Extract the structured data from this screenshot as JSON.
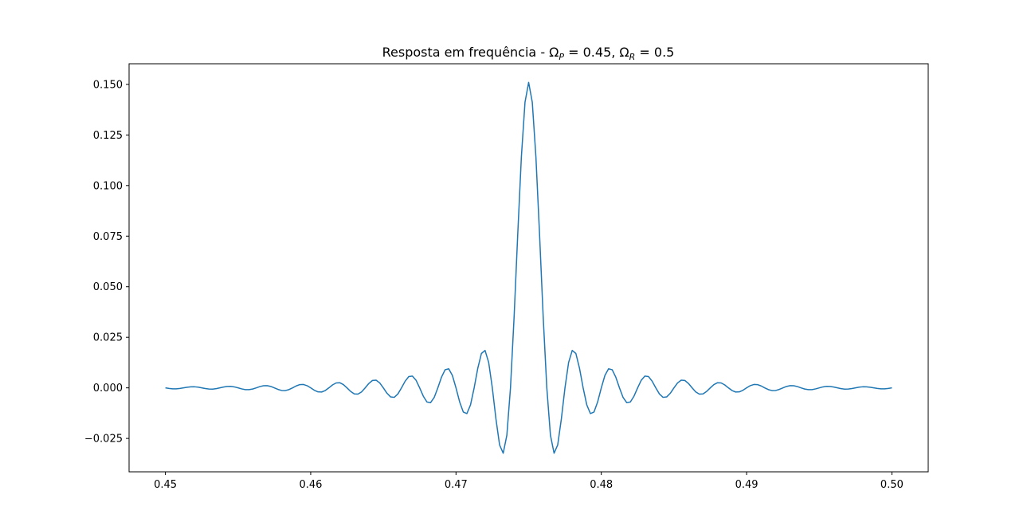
{
  "chart_data": {
    "type": "line",
    "title": [
      "Resposta em frequência - Ω",
      "P",
      " = 0.45, Ω",
      "R",
      " = 0.5"
    ],
    "xlim": [
      0.4475,
      0.5025
    ],
    "ylim": [
      -0.0415,
      0.1602
    ],
    "xticks": [
      0.45,
      0.46,
      0.47,
      0.48,
      0.49,
      {
        "value": 0.5,
        "label": "0.50"
      }
    ],
    "yticks": [
      {
        "value": -0.025,
        "label": "−0.025"
      },
      {
        "value": 0,
        "label": "0.000"
      },
      {
        "value": 0.025,
        "label": "0.025"
      },
      {
        "value": 0.05,
        "label": "0.050"
      },
      {
        "value": 0.075,
        "label": "0.075"
      },
      {
        "value": 0.1,
        "label": "0.100"
      },
      {
        "value": 0.125,
        "label": "0.125"
      },
      {
        "value": 0.15,
        "label": "0.150"
      }
    ],
    "grid": false,
    "series": [
      {
        "color": "#1f77b4",
        "x": [
          0.45,
          0.45025,
          0.4505,
          0.45075,
          0.451,
          0.45125,
          0.4515,
          0.45175,
          0.452,
          0.45225,
          0.4525,
          0.45275,
          0.453,
          0.45325,
          0.4535,
          0.45375,
          0.454,
          0.45425,
          0.4545,
          0.45475,
          0.455,
          0.45525,
          0.4555,
          0.45575,
          0.456,
          0.45625,
          0.4565,
          0.45675,
          0.457,
          0.45725,
          0.4575,
          0.45775,
          0.458,
          0.45825,
          0.4585,
          0.45875,
          0.459,
          0.45925,
          0.4595,
          0.45975,
          0.46,
          0.46025,
          0.4605,
          0.46075,
          0.461,
          0.46125,
          0.4615,
          0.46175,
          0.462,
          0.46225,
          0.4625,
          0.46275,
          0.463,
          0.46325,
          0.4635,
          0.46375,
          0.464,
          0.46425,
          0.4645,
          0.46475,
          0.465,
          0.46525,
          0.4655,
          0.46575,
          0.466,
          0.46625,
          0.4665,
          0.46675,
          0.467,
          0.46725,
          0.4675,
          0.46775,
          0.468,
          0.46825,
          0.4685,
          0.46875,
          0.469,
          0.46925,
          0.4695,
          0.46975,
          0.47,
          0.47025,
          0.4705,
          0.47075,
          0.471,
          0.47125,
          0.4715,
          0.47175,
          0.472,
          0.47225,
          0.4725,
          0.47275,
          0.473,
          0.47325,
          0.4735,
          0.47375,
          0.474,
          0.47425,
          0.4745,
          0.47475,
          0.475,
          0.47525,
          0.4755,
          0.47575,
          0.476,
          0.47625,
          0.4765,
          0.47675,
          0.477,
          0.47725,
          0.4775,
          0.47775,
          0.478,
          0.47825,
          0.4785,
          0.47875,
          0.479,
          0.47925,
          0.4795,
          0.47975,
          0.48,
          0.48025,
          0.4805,
          0.48075,
          0.481,
          0.48125,
          0.4815,
          0.48175,
          0.482,
          0.48225,
          0.4825,
          0.48275,
          0.483,
          0.48325,
          0.4835,
          0.48375,
          0.484,
          0.48425,
          0.4845,
          0.48475,
          0.485,
          0.48525,
          0.4855,
          0.48575,
          0.486,
          0.48625,
          0.4865,
          0.48675,
          0.487,
          0.48725,
          0.4875,
          0.48775,
          0.488,
          0.48825,
          0.4885,
          0.48875,
          0.489,
          0.48925,
          0.4895,
          0.48975,
          0.49,
          0.49025,
          0.4905,
          0.49075,
          0.491,
          0.49125,
          0.4915,
          0.49175,
          0.492,
          0.49225,
          0.4925,
          0.49275,
          0.493,
          0.49325,
          0.4935,
          0.49375,
          0.494,
          0.49425,
          0.4945,
          0.49475,
          0.495,
          0.49525,
          0.4955,
          0.49575,
          0.496,
          0.49625,
          0.4965,
          0.49675,
          0.497,
          0.49725,
          0.4975,
          0.49775,
          0.498,
          0.49825,
          0.4985,
          0.49875,
          0.499,
          0.49925,
          0.4995,
          0.49975,
          0.5
        ],
        "values": [
          0,
          -0.00029,
          -0.00047,
          -0.00048,
          -0.0003,
          0,
          0.00031,
          0.00052,
          0.00053,
          0.00034,
          0,
          -0.00035,
          -0.00059,
          -0.00061,
          -0.00039,
          0,
          0.00042,
          0.0007,
          0.00073,
          0.00047,
          0,
          -0.00051,
          -0.00086,
          -0.00089,
          -0.00057,
          0,
          0.00062,
          0.00105,
          0.0011,
          0.00071,
          0,
          -0.00077,
          -0.0013,
          -0.00135,
          -0.00087,
          0,
          0.00095,
          0.0016,
          0.00167,
          0.00108,
          0,
          -0.00117,
          -0.00197,
          -0.00206,
          -0.00132,
          0,
          0.00144,
          0.00243,
          0.00253,
          0.00163,
          0,
          -0.00177,
          -0.00298,
          -0.0031,
          -0.002,
          0,
          0.00217,
          0.00365,
          0.00381,
          0.00245,
          0,
          -0.00266,
          -0.00449,
          -0.00469,
          -0.00302,
          0,
          0.00329,
          0.00557,
          0.00582,
          0.00376,
          0,
          -0.00412,
          -0.00698,
          -0.00732,
          -0.00475,
          0,
          0.00525,
          0.00894,
          0.00943,
          0.00616,
          0,
          -0.00692,
          -0.01191,
          -0.0127,
          -0.00839,
          0,
          0.0097,
          0.017,
          0.01851,
          0.01254,
          0,
          -0.0154,
          -0.0282,
          -0.0323,
          -0.0234,
          0,
          0.0352,
          0.076,
          0.1142,
          0.1412,
          0.151,
          0.1412,
          0.1142,
          0.076,
          0.0352,
          0,
          -0.0234,
          -0.0323,
          -0.0282,
          -0.0154,
          0,
          0.01254,
          0.01851,
          0.017,
          0.0097,
          0,
          -0.00839,
          -0.0127,
          -0.01191,
          -0.00692,
          0,
          0.00616,
          0.00943,
          0.00894,
          0.00525,
          0,
          -0.00475,
          -0.00732,
          -0.00698,
          -0.00412,
          0,
          0.00376,
          0.00582,
          0.00557,
          0.00329,
          0,
          -0.00302,
          -0.00469,
          -0.00449,
          -0.00266,
          0,
          0.00245,
          0.00381,
          0.00365,
          0.00217,
          0,
          -0.002,
          -0.0031,
          -0.00298,
          -0.00177,
          0,
          0.00163,
          0.00253,
          0.00243,
          0.00144,
          0,
          -0.00132,
          -0.00206,
          -0.00197,
          -0.00117,
          0,
          0.00108,
          0.00167,
          0.0016,
          0.00095,
          0,
          -0.00087,
          -0.00135,
          -0.0013,
          -0.00077,
          0,
          0.00071,
          0.0011,
          0.00105,
          0.00062,
          0,
          -0.00057,
          -0.00089,
          -0.00086,
          -0.00051,
          0,
          0.00047,
          0.00073,
          0.0007,
          0.00042,
          0,
          -0.00039,
          -0.00061,
          -0.00059,
          -0.00035,
          0,
          0.00034,
          0.00053,
          0.00052,
          0.00031,
          0,
          -0.0003,
          -0.00048,
          -0.00047,
          -0.00029,
          0
        ]
      }
    ]
  }
}
